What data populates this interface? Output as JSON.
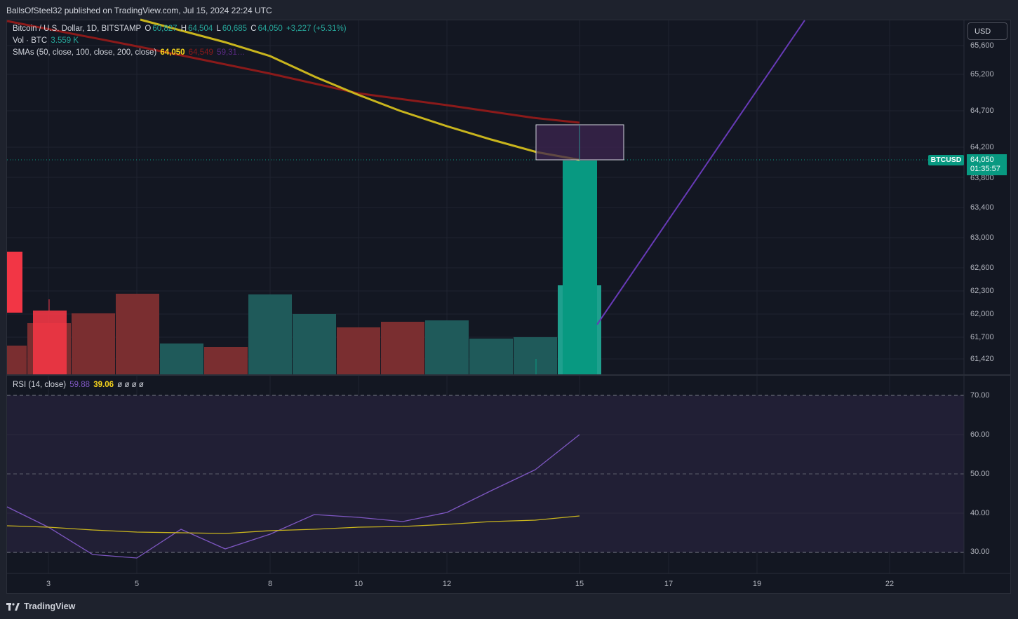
{
  "publisher_line": "BallsOfSteel32 published on TradingView.com, Jul 15, 2024 22:24 UTC",
  "legend": {
    "symbol": "Bitcoin / U.S. Dollar, 1D, BITSTAMP",
    "o_label": "O",
    "o_val": "60,827",
    "h_label": "H",
    "h_val": "64,504",
    "l_label": "L",
    "l_val": "60,685",
    "c_label": "C",
    "c_val": "64,050",
    "change": "+3,227 (+5.31%)",
    "vol_label": "Vol · BTC",
    "vol_val": "3.559 K",
    "sma_label": "SMAs (50, close, 100, close, 200, close)",
    "sma1": "64,050",
    "sma2": "64,549",
    "sma3": "59,31…",
    "rsi_label": "RSI (14, close)",
    "rsi_val": "59.88",
    "rsi_ma": "39.06",
    "rsi_extra": "ø  ø  ø  ø"
  },
  "currency_button": "USD",
  "price_axis": [
    "65,600",
    "65,200",
    "64,700",
    "64,200",
    "63,800",
    "63,400",
    "63,000",
    "62,600",
    "62,300",
    "62,000",
    "61,700",
    "61,420"
  ],
  "rsi_axis": [
    "70.00",
    "60.00",
    "50.00",
    "40.00",
    "30.00"
  ],
  "time_axis": [
    "3",
    "5",
    "8",
    "10",
    "12",
    "15",
    "17",
    "19",
    "22"
  ],
  "symbol_tag": "BTCUSD",
  "last_price": "64,050",
  "countdown": "01:35:57",
  "brand": "TradingView",
  "colors": {
    "up": "#089981",
    "down": "#f23645",
    "sma50": "#c9b51d",
    "sma100": "#8b1a1a",
    "rsi": "#7e57c2",
    "rsi_ma": "#c9b51d",
    "trend": "#673ab7"
  }
}
